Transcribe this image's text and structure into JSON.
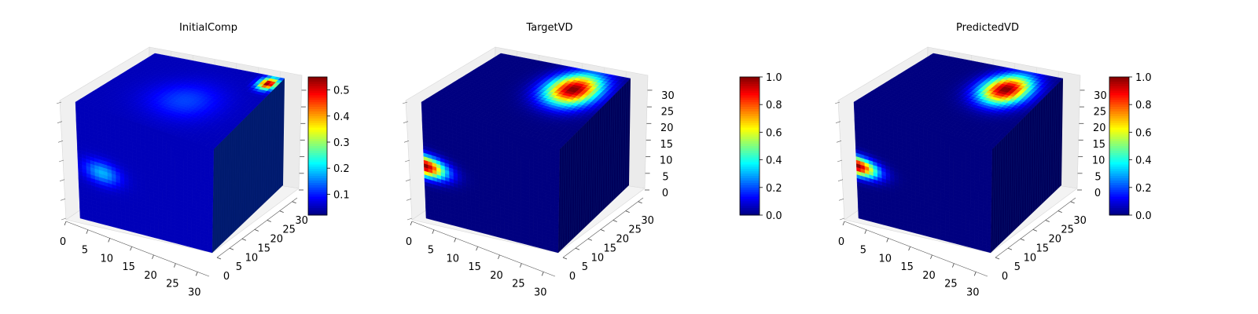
{
  "figure": {
    "background": "#ffffff"
  },
  "chart_data": [
    {
      "type": "heatmap",
      "subtype": "3d-voxel-cube",
      "title": "InitialComp",
      "x_ticks": [
        "0",
        "5",
        "10",
        "15",
        "20",
        "25",
        "30"
      ],
      "y_ticks": [
        "0",
        "5",
        "10",
        "15",
        "20",
        "25",
        "30"
      ],
      "z_ticks": [],
      "xlim": [
        0,
        32
      ],
      "ylim": [
        0,
        32
      ],
      "zlim": [
        0,
        32
      ],
      "colorbar": {
        "colormap": "jet",
        "range": [
          0.02,
          0.55
        ],
        "ticks": [
          "0.1",
          "0.2",
          "0.3",
          "0.4",
          "0.5"
        ]
      },
      "features": [
        {
          "face": "front",
          "center": [
            0.18,
            0.55
          ],
          "radius": [
            0.16,
            0.12
          ],
          "value": 0.18
        },
        {
          "face": "top",
          "center": [
            0.55,
            0.45
          ],
          "radius": [
            0.3,
            0.32
          ],
          "value": 0.12
        },
        {
          "face": "top",
          "center": [
            0.93,
            0.9
          ],
          "radius": [
            0.08,
            0.1
          ],
          "value": 0.55
        }
      ],
      "base_value": 0.05
    },
    {
      "type": "heatmap",
      "subtype": "3d-voxel-cube",
      "title": "TargetVD",
      "x_ticks": [
        "0",
        "5",
        "10",
        "15",
        "20",
        "25",
        "30"
      ],
      "y_ticks": [
        "0",
        "5",
        "10",
        "15",
        "20",
        "25",
        "30"
      ],
      "z_ticks": [
        "0",
        "5",
        "10",
        "15",
        "20",
        "25",
        "30"
      ],
      "xlim": [
        0,
        32
      ],
      "ylim": [
        0,
        32
      ],
      "zlim": [
        0,
        32
      ],
      "colorbar": {
        "colormap": "jet",
        "range": [
          0.0,
          1.0
        ],
        "ticks": [
          "0.0",
          "0.2",
          "0.4",
          "0.6",
          "0.8",
          "1.0"
        ]
      },
      "features": [
        {
          "face": "front",
          "center": [
            0.0,
            0.55
          ],
          "radius": [
            0.2,
            0.11
          ],
          "value": 1.0
        },
        {
          "face": "top",
          "center": [
            0.72,
            0.72
          ],
          "radius": [
            0.22,
            0.28
          ],
          "value": 1.0
        }
      ],
      "base_value": 0.0
    },
    {
      "type": "heatmap",
      "subtype": "3d-voxel-cube",
      "title": "PredictedVD",
      "x_ticks": [
        "0",
        "5",
        "10",
        "15",
        "20",
        "25",
        "30"
      ],
      "y_ticks": [
        "0",
        "5",
        "10",
        "15",
        "20",
        "25",
        "30"
      ],
      "z_ticks": [
        "0",
        "5",
        "10",
        "15",
        "20",
        "25",
        "30"
      ],
      "xlim": [
        0,
        32
      ],
      "ylim": [
        0,
        32
      ],
      "zlim": [
        0,
        32
      ],
      "colorbar": {
        "colormap": "jet",
        "range": [
          0.0,
          1.0
        ],
        "ticks": [
          "0.0",
          "0.2",
          "0.4",
          "0.6",
          "0.8",
          "1.0"
        ]
      },
      "features": [
        {
          "face": "front",
          "center": [
            0.0,
            0.55
          ],
          "radius": [
            0.19,
            0.1
          ],
          "value": 1.0
        },
        {
          "face": "top",
          "center": [
            0.72,
            0.72
          ],
          "radius": [
            0.2,
            0.26
          ],
          "value": 1.0
        }
      ],
      "base_value": 0.0
    }
  ]
}
